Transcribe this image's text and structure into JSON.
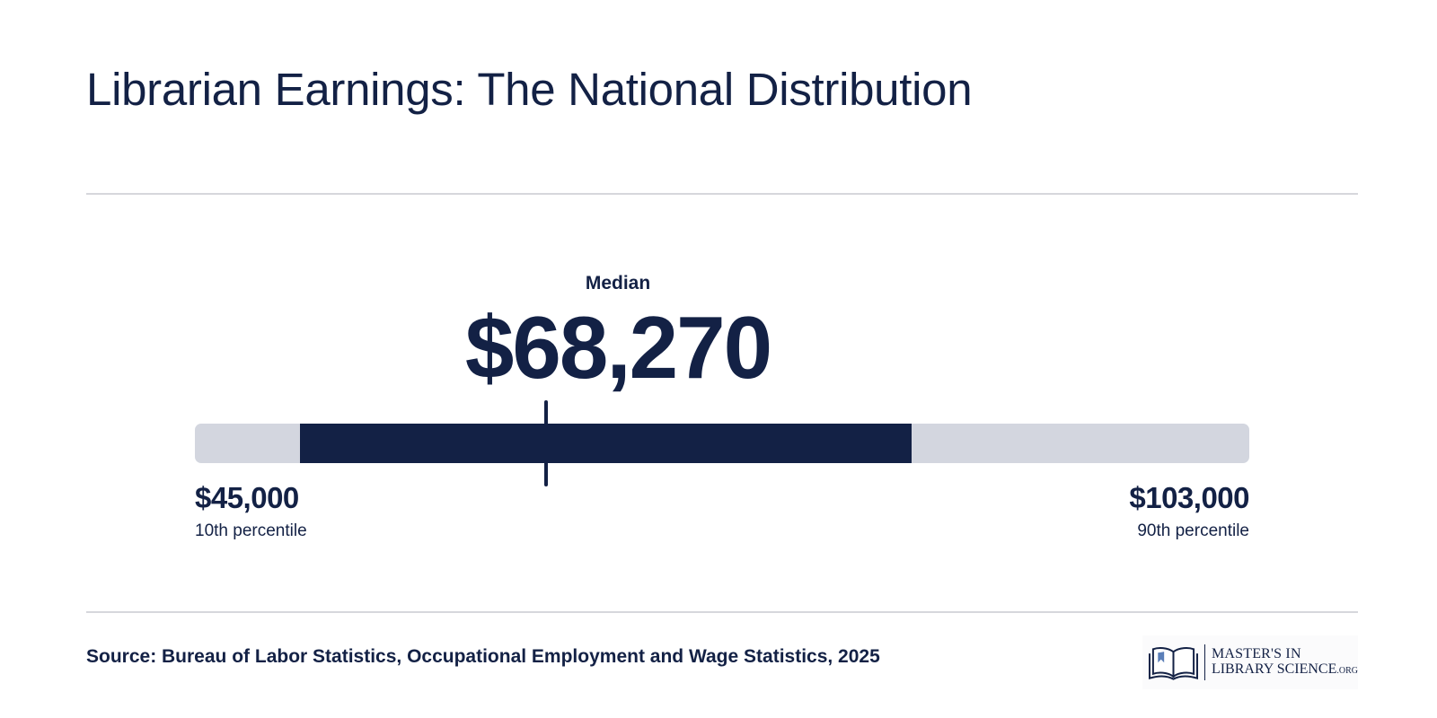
{
  "title": "Librarian Earnings: The National Distribution",
  "chart_data": {
    "type": "range",
    "scale_min": 35000,
    "scale_max": 135000,
    "median": {
      "label": "Median",
      "value": 68270,
      "display": "$68,270"
    },
    "low": {
      "value": 45000,
      "display": "$45,000",
      "label": "10th percentile"
    },
    "high": {
      "value": 103000,
      "display": "$103,000",
      "label": "90th percentile"
    }
  },
  "source": "Source: Bureau of Labor Statistics, Occupational Employment and Wage Statistics, 2025",
  "logo": {
    "icon": "open-book-icon",
    "line1": "MASTER'S IN",
    "line2": "LIBRARY SCIENCE",
    "suffix": ".ORG"
  },
  "colors": {
    "navy": "#132145",
    "track": "#d3d6df",
    "divider": "#d6d7dc",
    "bookmark": "#5b7fb8"
  }
}
